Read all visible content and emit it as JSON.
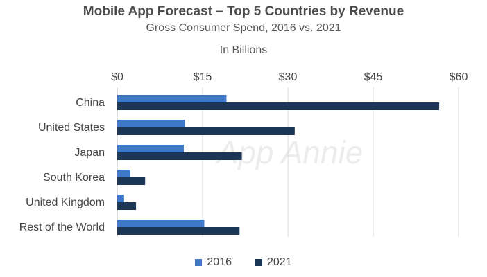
{
  "chart_data": {
    "type": "bar",
    "orientation": "horizontal",
    "title": "Mobile App Forecast – Top 5 Countries by Revenue",
    "subtitle": "Gross Consumer Spend, 2016 vs. 2021",
    "unit_label": "In Billions",
    "categories": [
      "China",
      "United States",
      "Japan",
      "South Korea",
      "United Kingdom",
      "Rest of the World"
    ],
    "series": [
      {
        "name": "2016",
        "color": "#3f78c8",
        "values": [
          19.2,
          11.9,
          11.7,
          2.3,
          1.2,
          15.3
        ]
      },
      {
        "name": "2021",
        "color": "#1c3655",
        "values": [
          56.6,
          31.2,
          21.9,
          4.9,
          3.3,
          21.5
        ]
      }
    ],
    "xlim": [
      0,
      60
    ],
    "x_ticks": [
      0,
      15,
      30,
      45,
      60
    ],
    "x_tick_labels": [
      "$0",
      "$15",
      "$30",
      "$45",
      "$60"
    ],
    "axis_position": "top",
    "grid": true,
    "legend_position": "bottom-center",
    "watermark": "App Annie"
  }
}
